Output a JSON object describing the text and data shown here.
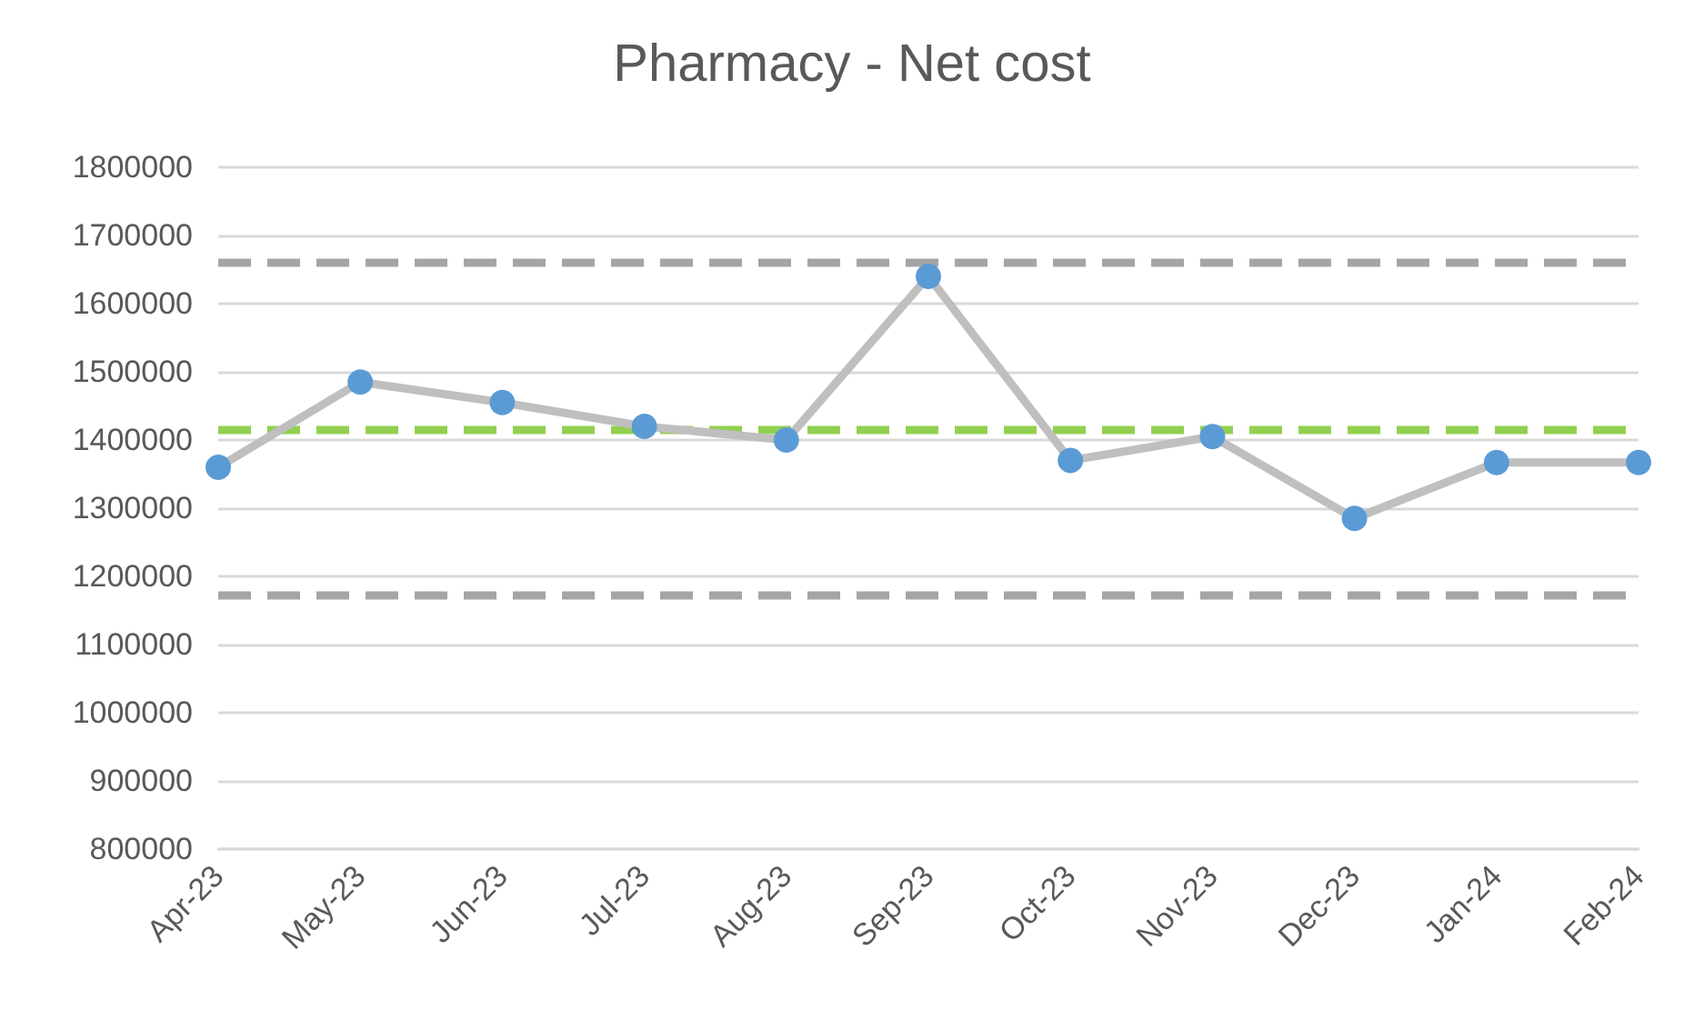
{
  "chart_data": {
    "type": "line",
    "title": "Pharmacy - Net cost",
    "categories": [
      "Apr-23",
      "May-23",
      "Jun-23",
      "Jul-23",
      "Aug-23",
      "Sep-23",
      "Oct-23",
      "Nov-23",
      "Dec-23",
      "Jan-24",
      "Feb-24"
    ],
    "series": [
      {
        "color": "#5b9bd5",
        "values": [
          1360000,
          1485000,
          1455000,
          1420000,
          1400000,
          1640000,
          1370000,
          1405000,
          1285000,
          1367000,
          1367000
        ]
      }
    ],
    "ylim": [
      800000,
      1800000
    ],
    "yticks": [
      800000,
      900000,
      1000000,
      1100000,
      1200000,
      1300000,
      1400000,
      1500000,
      1600000,
      1700000,
      1800000
    ],
    "ref_lines": [
      {
        "axis": "y",
        "value": 1660000,
        "color": "#a5a5a5",
        "line_style": "dashed"
      },
      {
        "axis": "y",
        "value": 1415000,
        "color": "#92d050",
        "line_style": "dashed"
      },
      {
        "axis": "y",
        "value": 1172000,
        "color": "#a5a5a5",
        "line_style": "dashed"
      }
    ],
    "grid": "y",
    "marker": "circle"
  }
}
